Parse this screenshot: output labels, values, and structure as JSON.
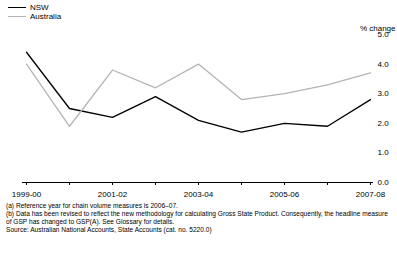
{
  "chart_data": {
    "type": "line",
    "categories": [
      "1999-00",
      null,
      "2001-02",
      null,
      "2003-04",
      null,
      "2005-06",
      null,
      "2007-08"
    ],
    "series": [
      {
        "name": "NSW",
        "color": "#000000",
        "values": [
          4.4,
          2.5,
          2.2,
          2.9,
          2.1,
          1.7,
          2.0,
          1.9,
          2.8
        ]
      },
      {
        "name": "Australia",
        "color": "#b4b4b4",
        "values": [
          4.0,
          1.9,
          3.8,
          3.2,
          4.0,
          2.8,
          3.0,
          3.3,
          3.7
        ]
      }
    ],
    "y_label": "% change",
    "ylim": [
      0,
      5
    ],
    "yticks": [
      0,
      1,
      2,
      3,
      4,
      5
    ],
    "legend": "top-left",
    "annotations": [
      "(a) Reference year for chain volume measures is 2006–07.",
      "(b) Data has been revised to reflect the new methodology for calculating Gross State Product. Consequently, the headline measure of GSP has changed to GSP(A). See Glossary for details.",
      "Source: Australian National Accounts, State Accounts (cat. no. 5220.0)"
    ]
  }
}
